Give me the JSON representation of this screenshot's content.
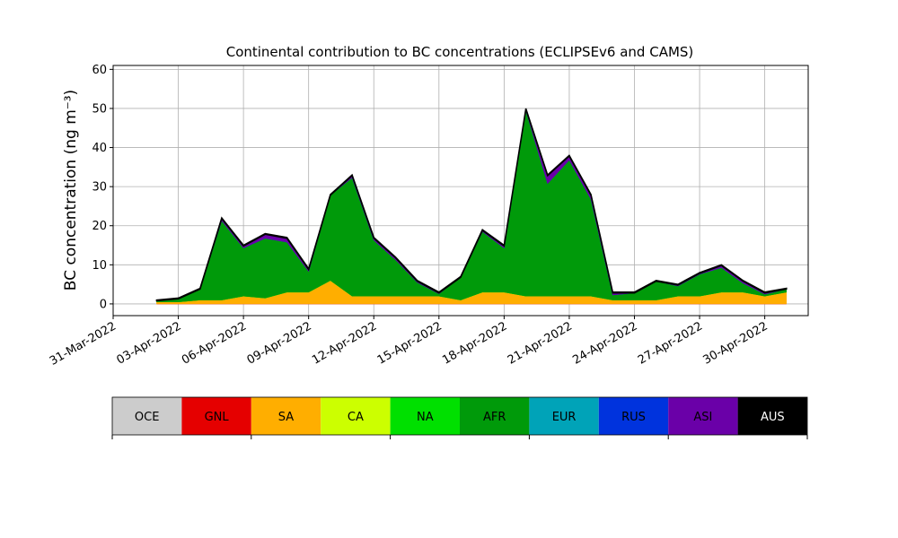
{
  "chart_data": {
    "type": "stacked_area",
    "title": "Continental contribution to BC concentrations (ECLIPSEv6 and CAMS)",
    "y_label": "BC concentration (ng m⁻³)",
    "x": [
      "2022-04-02",
      "2022-04-03",
      "2022-04-04",
      "2022-04-05",
      "2022-04-06",
      "2022-04-07",
      "2022-04-08",
      "2022-04-09",
      "2022-04-10",
      "2022-04-11",
      "2022-04-12",
      "2022-04-13",
      "2022-04-14",
      "2022-04-15",
      "2022-04-16",
      "2022-04-17",
      "2022-04-18",
      "2022-04-19",
      "2022-04-20",
      "2022-04-21",
      "2022-04-22",
      "2022-04-23",
      "2022-04-24",
      "2022-04-25",
      "2022-04-26",
      "2022-04-27",
      "2022-04-28",
      "2022-04-29",
      "2022-04-30",
      "2022-05-01"
    ],
    "series": [
      {
        "name": "OCE",
        "color": "#cccccc",
        "values": [
          0,
          0,
          0,
          0,
          0,
          0,
          0,
          0,
          0,
          0,
          0,
          0,
          0,
          0,
          0,
          0,
          0,
          0,
          0,
          0,
          0,
          0,
          0,
          0,
          0,
          0,
          0,
          0,
          0,
          0
        ]
      },
      {
        "name": "GNL",
        "color": "#e50000",
        "values": [
          0,
          0,
          0,
          0,
          0,
          0,
          0,
          0,
          0,
          0,
          0,
          0,
          0,
          0,
          0,
          0,
          0,
          0,
          0,
          0,
          0,
          0,
          0,
          0,
          0,
          0,
          0,
          0,
          0,
          0
        ]
      },
      {
        "name": "SA",
        "color": "#ffae00",
        "values": [
          0.5,
          0.5,
          1,
          1,
          2,
          1.5,
          3,
          3,
          6,
          2,
          2,
          2,
          2,
          2,
          1,
          3,
          3,
          2,
          2,
          2,
          2,
          1,
          1,
          1,
          2,
          2,
          3,
          3,
          2,
          3
        ]
      },
      {
        "name": "CA",
        "color": "#ccff00",
        "values": [
          0,
          0,
          0,
          0,
          0,
          0,
          0,
          0,
          0,
          0,
          0,
          0,
          0,
          0,
          0,
          0,
          0,
          0,
          0,
          0,
          0,
          0,
          0,
          0,
          0,
          0,
          0,
          0,
          0,
          0
        ]
      },
      {
        "name": "NA",
        "color": "#00e000",
        "values": [
          0,
          0,
          0,
          0,
          0,
          0,
          0,
          0,
          0,
          0,
          0,
          0,
          0,
          0,
          0,
          0,
          0,
          0,
          0,
          0,
          0,
          0,
          0,
          0,
          0,
          0,
          0,
          0,
          0,
          0
        ]
      },
      {
        "name": "AFR",
        "color": "#009a0a",
        "values": [
          0.3,
          0.8,
          2.8,
          20.3,
          12.3,
          15.3,
          12.8,
          5.3,
          21.8,
          30.3,
          14.3,
          9.3,
          3.5,
          0.6,
          5.8,
          15.5,
          11.3,
          47.5,
          28.8,
          34.8,
          24.8,
          1.3,
          1.8,
          4.8,
          2.6,
          5.6,
          6.3,
          2.3,
          0.5,
          0.8
        ]
      },
      {
        "name": "EUR",
        "color": "#00a3b8",
        "values": [
          0,
          0,
          0,
          0,
          0,
          0,
          0,
          0,
          0,
          0,
          0,
          0,
          0,
          0,
          0,
          0,
          0,
          0,
          0,
          0,
          0,
          0,
          0,
          0,
          0,
          0,
          0,
          0,
          0,
          0
        ]
      },
      {
        "name": "RUS",
        "color": "#0033dd",
        "values": [
          0,
          0,
          0,
          0,
          0,
          0,
          0,
          0,
          0,
          0,
          0,
          0,
          0,
          0,
          0,
          0,
          0,
          0,
          0,
          0,
          0,
          0,
          0,
          0,
          0,
          0,
          0,
          0,
          0,
          0
        ]
      },
      {
        "name": "ASI",
        "color": "#6a00a8",
        "values": [
          0,
          0,
          0,
          0.5,
          0.5,
          1,
          1,
          0.5,
          0,
          0.5,
          0.5,
          0.5,
          0.3,
          0.2,
          0,
          0.3,
          0.5,
          0.3,
          2,
          1,
          1,
          0.5,
          0,
          0,
          0.2,
          0.2,
          0.5,
          0.5,
          0.3,
          0
        ]
      },
      {
        "name": "AUS",
        "color": "#000000",
        "values": [
          0.2,
          0.2,
          0.2,
          0.2,
          0.2,
          0.2,
          0.2,
          0.2,
          0.2,
          0.2,
          0.2,
          0.2,
          0.2,
          0.2,
          0.2,
          0.2,
          0.2,
          0.2,
          0.2,
          0.2,
          0.2,
          0.2,
          0.2,
          0.2,
          0.2,
          0.2,
          0.2,
          0.2,
          0.2,
          0.2
        ]
      }
    ],
    "xlim": [
      "2022-03-31",
      "2022-05-02"
    ],
    "xticks": [
      {
        "value": "2022-03-31",
        "label": "31-Mar-2022"
      },
      {
        "value": "2022-04-03",
        "label": "03-Apr-2022"
      },
      {
        "value": "2022-04-06",
        "label": "06-Apr-2022"
      },
      {
        "value": "2022-04-09",
        "label": "09-Apr-2022"
      },
      {
        "value": "2022-04-12",
        "label": "12-Apr-2022"
      },
      {
        "value": "2022-04-15",
        "label": "15-Apr-2022"
      },
      {
        "value": "2022-04-18",
        "label": "18-Apr-2022"
      },
      {
        "value": "2022-04-21",
        "label": "21-Apr-2022"
      },
      {
        "value": "2022-04-24",
        "label": "24-Apr-2022"
      },
      {
        "value": "2022-04-27",
        "label": "27-Apr-2022"
      },
      {
        "value": "2022-04-30",
        "label": "30-Apr-2022"
      }
    ],
    "ylim": [
      -3,
      61
    ],
    "yticks": [
      0,
      10,
      20,
      30,
      40,
      50,
      60
    ],
    "grid": true,
    "legend": "bottom"
  }
}
